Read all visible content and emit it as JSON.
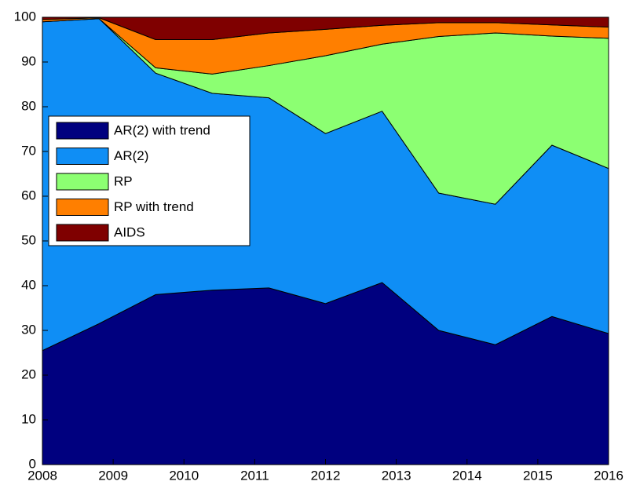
{
  "chart_data": {
    "type": "stacked_area",
    "x": [
      2008,
      2008.8,
      2009.6,
      2010.4,
      2011.2,
      2012,
      2012.8,
      2013.6,
      2014.4,
      2015.2,
      2016
    ],
    "series": [
      {
        "name": "AR(2) with trend",
        "color": "#00007f",
        "values": [
          25.5,
          31.5,
          38,
          39,
          39.5,
          36,
          40.7,
          30,
          26.8,
          33.1,
          29.3
        ]
      },
      {
        "name": "AR(2)",
        "color": "#0f8ef5",
        "values": [
          73.5,
          68.2,
          49.5,
          44,
          42.5,
          38,
          38.3,
          30.7,
          31.4,
          38.3,
          36.9
        ]
      },
      {
        "name": "RP",
        "color": "#8cff72",
        "values": [
          0,
          0,
          1.2,
          4.3,
          7.2,
          17.4,
          15,
          35,
          38.3,
          24.4,
          29.1
        ]
      },
      {
        "name": "RP with trend",
        "color": "#ff7f00",
        "values": [
          0.5,
          0.2,
          6.3,
          7.7,
          7.3,
          5.9,
          4.2,
          3.1,
          2.3,
          2.5,
          2.5
        ]
      },
      {
        "name": "AIDS",
        "color": "#7f0000",
        "values": [
          0.5,
          0.1,
          5,
          5,
          3.5,
          2.7,
          1.8,
          1.2,
          1.2,
          1.7,
          2.2
        ]
      }
    ],
    "xlim": [
      2008,
      2016
    ],
    "xticks": [
      2008,
      2009,
      2010,
      2011,
      2012,
      2013,
      2014,
      2015,
      2016
    ],
    "ylim": [
      0,
      100
    ],
    "yticks": [
      0,
      10,
      20,
      30,
      40,
      50,
      60,
      70,
      80,
      90,
      100
    ],
    "legend": "upper left"
  }
}
